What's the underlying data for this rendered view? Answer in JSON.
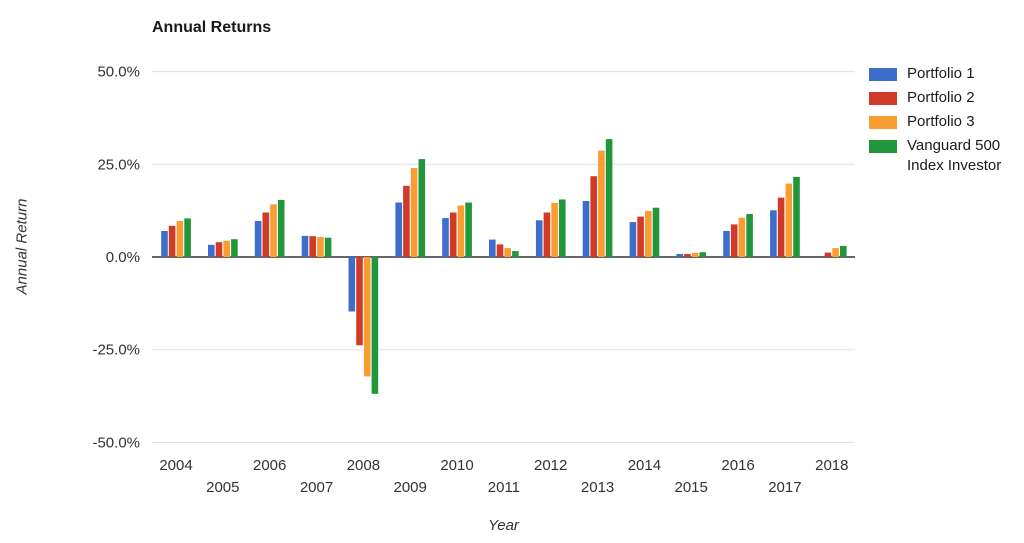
{
  "chart_data": {
    "type": "bar",
    "title": "Annual Returns",
    "xlabel": "Year",
    "ylabel": "Annual Return",
    "categories": [
      "2004",
      "2005",
      "2006",
      "2007",
      "2008",
      "2009",
      "2010",
      "2011",
      "2012",
      "2013",
      "2014",
      "2015",
      "2016",
      "2017",
      "2018"
    ],
    "series": [
      {
        "name": "Portfolio 1",
        "color": "#3d6ecb",
        "values": [
          7.0,
          3.3,
          9.7,
          5.7,
          -14.7,
          14.7,
          10.5,
          4.7,
          9.9,
          15.1,
          9.4,
          0.8,
          7.0,
          12.6,
          0.0
        ]
      },
      {
        "name": "Portfolio 2",
        "color": "#d23a28",
        "values": [
          8.4,
          4.0,
          12.0,
          5.6,
          -23.8,
          19.2,
          12.0,
          3.4,
          12.0,
          21.8,
          10.9,
          0.8,
          8.8,
          16.0,
          1.2
        ]
      },
      {
        "name": "Portfolio 3",
        "color": "#f99d33",
        "values": [
          9.7,
          4.4,
          14.2,
          5.4,
          -32.2,
          24.0,
          13.9,
          2.4,
          14.6,
          28.7,
          12.4,
          1.1,
          10.6,
          19.8,
          2.4
        ]
      },
      {
        "name": "Vanguard 500 Index Investor",
        "color": "#22963b",
        "values": [
          10.4,
          4.8,
          15.4,
          5.2,
          -36.9,
          26.4,
          14.7,
          1.6,
          15.5,
          31.8,
          13.3,
          1.3,
          11.6,
          21.6,
          3.0
        ]
      }
    ],
    "y_ticks": [
      {
        "value": 50,
        "label": "50.0%"
      },
      {
        "value": 25,
        "label": "25.0%"
      },
      {
        "value": 0,
        "label": "0.0%"
      },
      {
        "value": -25,
        "label": "-25.0%"
      },
      {
        "value": -50,
        "label": "-50.0%"
      }
    ],
    "ylim": [
      -50,
      50
    ],
    "grid": true,
    "legend_position": "right",
    "x_tick_stagger": true
  },
  "colors": {
    "grid": "#e0e0e0",
    "zero_line": "#666666",
    "tick_text": "#333333",
    "background": "#ffffff"
  }
}
